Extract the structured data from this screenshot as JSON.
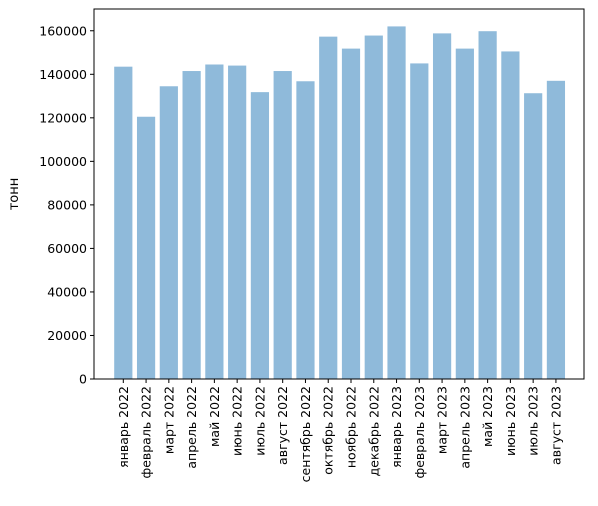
{
  "chart_data": {
    "type": "bar",
    "title": "",
    "xlabel": "",
    "ylabel": "тонн",
    "ylim": [
      0,
      170000
    ],
    "y_ticks": [
      0,
      20000,
      40000,
      60000,
      80000,
      100000,
      120000,
      140000,
      160000
    ],
    "y_tick_labels": [
      "0",
      "20000",
      "40000",
      "60000",
      "80000",
      "100000",
      "120000",
      "140000",
      "160000"
    ],
    "grid": false,
    "legend": "none",
    "bar_color": "#8fbada",
    "categories": [
      "январь 2022",
      "февраль 2022",
      "март 2022",
      "апрель 2022",
      "май 2022",
      "июнь 2022",
      "июль 2022",
      "август 2022",
      "сентябрь 2022",
      "октябрь 2022",
      "ноябрь 2022",
      "декабрь 2022",
      "январь 2023",
      "февраль 2023",
      "март 2023",
      "апрель 2023",
      "май 2023",
      "июнь 2023",
      "июль 2023",
      "август 2023"
    ],
    "values": [
      143500,
      120500,
      134500,
      141500,
      144500,
      144000,
      131800,
      141500,
      136800,
      157300,
      151800,
      157800,
      162000,
      145000,
      158800,
      151800,
      159800,
      150500,
      131300,
      137000
    ]
  }
}
